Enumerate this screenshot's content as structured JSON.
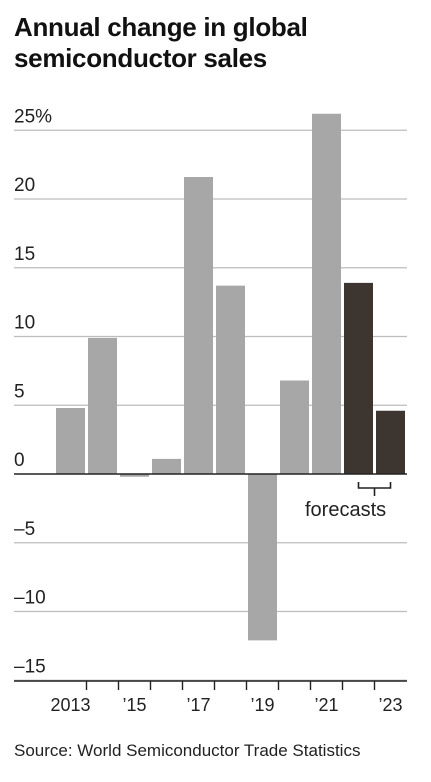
{
  "chart_data": {
    "type": "bar",
    "title": "Annual change in global semiconductor sales",
    "source": "Source: World Semiconductor Trade Statistics",
    "ylim": [
      -15,
      25
    ],
    "y_ticks": [
      25,
      20,
      15,
      10,
      5,
      0,
      -5,
      -10,
      -15
    ],
    "y_tick_labels": [
      "25%",
      "20",
      "15",
      "10",
      "5",
      "0",
      "–5",
      "–10",
      "–15"
    ],
    "grid": true,
    "categories": [
      "2013",
      "2014",
      "2015",
      "2016",
      "2017",
      "2018",
      "2019",
      "2020",
      "2021",
      "2022",
      "2023"
    ],
    "x_tick_labels": [
      "2013",
      "",
      "’15",
      "",
      "’17",
      "",
      "’19",
      "",
      "’21",
      "",
      "’23"
    ],
    "values": [
      4.8,
      9.9,
      -0.2,
      1.1,
      21.6,
      13.7,
      -12.1,
      6.8,
      26.2,
      13.9,
      4.6
    ],
    "forecast": [
      false,
      false,
      false,
      false,
      false,
      false,
      false,
      false,
      false,
      true,
      true
    ],
    "annotation": "forecasts",
    "colors": {
      "actual": "#a7a7a7",
      "forecast": "#3d3630",
      "grid": "#bdbdbd",
      "axis": "#222222"
    }
  }
}
